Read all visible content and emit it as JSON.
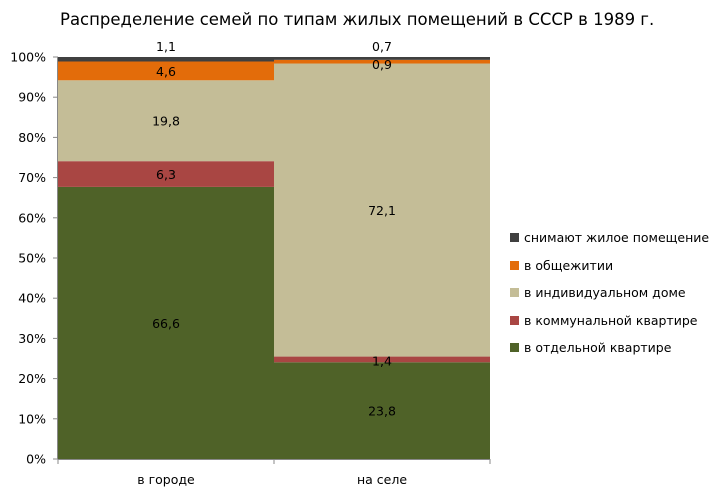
{
  "chart_data": {
    "type": "bar",
    "stacked": true,
    "percent_stacked": true,
    "title": "Распределение семей по типам жилых помещений в СССР в 1989 г.",
    "categories": [
      "в городе",
      "на селе"
    ],
    "ylim": [
      0,
      100
    ],
    "yticks": [
      "0%",
      "10%",
      "20%",
      "30%",
      "40%",
      "50%",
      "60%",
      "70%",
      "80%",
      "90%",
      "100%"
    ],
    "grid": false,
    "legend_position": "right",
    "series": [
      {
        "name": "в отдельной квартире",
        "values": [
          66.6,
          23.8
        ],
        "labels": [
          "66,6",
          "23,8"
        ],
        "color": "#4f6228"
      },
      {
        "name": "в коммунальной квартире",
        "values": [
          6.3,
          1.4
        ],
        "labels": [
          "6,3",
          "1,4"
        ],
        "color": "#a94643"
      },
      {
        "name": "в индивидуальном доме",
        "values": [
          19.8,
          72.1
        ],
        "labels": [
          "19,8",
          "72,1"
        ],
        "color": "#c4bd97"
      },
      {
        "name": "в общежитии",
        "values": [
          4.6,
          0.9
        ],
        "labels": [
          "4,6",
          "0,9"
        ],
        "color": "#e36c0a"
      },
      {
        "name": "снимают жилое помещение",
        "values": [
          1.1,
          0.7
        ],
        "labels": [
          "1,1",
          "0,7"
        ],
        "color": "#404040"
      }
    ]
  }
}
